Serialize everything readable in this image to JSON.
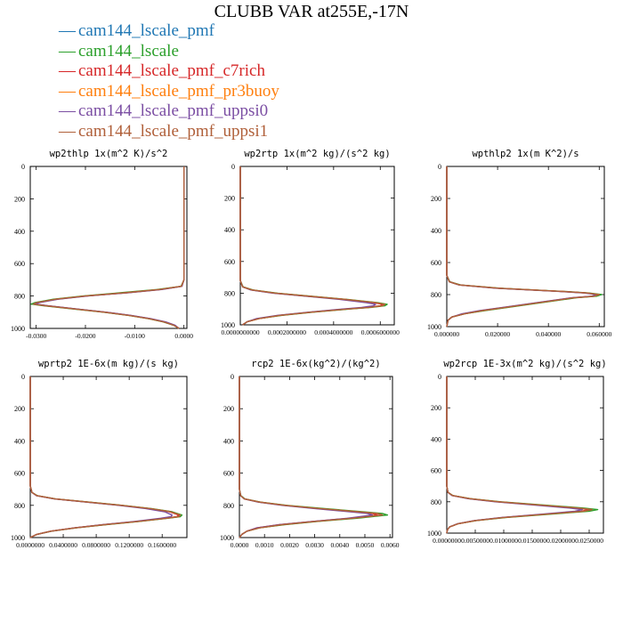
{
  "title": "CLUBB VAR at255E,-17N",
  "series": [
    {
      "name": "cam144_lscale_pmf",
      "color": "#1f77b4"
    },
    {
      "name": "cam144_lscale",
      "color": "#2ca02c"
    },
    {
      "name": "cam144_lscale_pmf_c7rich",
      "color": "#d62728"
    },
    {
      "name": "cam144_lscale_pmf_pr3buoy",
      "color": "#ff7f0e"
    },
    {
      "name": "cam144_lscale_pmf_uppsi0",
      "color": "#7b4ea3"
    },
    {
      "name": "cam144_lscale_pmf_uppsi1",
      "color": "#b0603a"
    }
  ],
  "legend_symbol": "—",
  "chart_data": [
    {
      "type": "line",
      "title": "wp2thlp   1x(m^2 K)/s^2",
      "ylim": [
        1000,
        0
      ],
      "yticks": [
        0,
        200,
        400,
        600,
        800,
        1000
      ],
      "xlim": [
        -0.0312,
        0.0006
      ],
      "xticks": [
        -0.03,
        -0.02,
        -0.01,
        0.0
      ],
      "xticklabels": [
        "-0.0300",
        "-0.0200",
        "-0.0100",
        "0.0000"
      ],
      "y": [
        0,
        700,
        740,
        760,
        780,
        800,
        820,
        840,
        850,
        860,
        880,
        900,
        920,
        940,
        960,
        980,
        1000
      ],
      "curves": [
        [
          0,
          0,
          -0.0005,
          -0.005,
          -0.012,
          -0.02,
          -0.026,
          -0.0298,
          -0.0305,
          -0.028,
          -0.022,
          -0.016,
          -0.011,
          -0.007,
          -0.004,
          -0.002,
          -0.001
        ],
        [
          0,
          0,
          -0.0006,
          -0.0055,
          -0.013,
          -0.0205,
          -0.0265,
          -0.0302,
          -0.031,
          -0.0285,
          -0.0225,
          -0.0163,
          -0.0112,
          -0.0072,
          -0.0042,
          -0.0021,
          -0.001
        ],
        [
          0,
          0,
          -0.0005,
          -0.0048,
          -0.0118,
          -0.0198,
          -0.0258,
          -0.0296,
          -0.0303,
          -0.0279,
          -0.0219,
          -0.0159,
          -0.0109,
          -0.0069,
          -0.0039,
          -0.0019,
          -0.001
        ],
        [
          0,
          0,
          -0.0005,
          -0.0049,
          -0.0119,
          -0.0199,
          -0.0259,
          -0.0297,
          -0.0304,
          -0.028,
          -0.022,
          -0.016,
          -0.011,
          -0.007,
          -0.004,
          -0.002,
          -0.001
        ],
        [
          0,
          0,
          -0.0004,
          -0.0045,
          -0.0115,
          -0.0195,
          -0.0255,
          -0.0293,
          -0.0301,
          -0.0277,
          -0.0217,
          -0.0157,
          -0.0107,
          -0.0067,
          -0.0037,
          -0.0018,
          -0.001
        ],
        [
          0,
          0,
          -0.0005,
          -0.005,
          -0.012,
          -0.02,
          -0.026,
          -0.0299,
          -0.0306,
          -0.0281,
          -0.0221,
          -0.0161,
          -0.0111,
          -0.0071,
          -0.0041,
          -0.0021,
          -0.001
        ]
      ]
    },
    {
      "type": "line",
      "title": "wp2rtp   1x(m^2 kg)/(s^2 kg)",
      "ylim": [
        1000,
        0
      ],
      "yticks": [
        0,
        200,
        400,
        600,
        800,
        1000
      ],
      "xlim": [
        0,
        0.00066
      ],
      "xticks": [
        0,
        0.0002,
        0.0004,
        0.0006
      ],
      "xticklabels": [
        "0.0000000000",
        "0.0002000000",
        "0.0004000000",
        "0.0006000000"
      ],
      "y": [
        0,
        720,
        760,
        780,
        800,
        820,
        840,
        860,
        870,
        880,
        890,
        900,
        920,
        940,
        960,
        980,
        1000
      ],
      "curves": [
        [
          0,
          0,
          1e-05,
          5e-05,
          0.00015,
          0.0003,
          0.00045,
          0.00058,
          0.00062,
          0.00061,
          0.00055,
          0.00046,
          0.0003,
          0.00017,
          8e-05,
          3e-05,
          1e-05
        ],
        [
          0,
          0,
          1.2e-05,
          5.5e-05,
          0.00016,
          0.00031,
          0.00046,
          0.00059,
          0.00063,
          0.00062,
          0.00056,
          0.00047,
          0.00031,
          0.00018,
          8e-05,
          3e-05,
          1e-05
        ],
        [
          0,
          0,
          1e-05,
          5e-05,
          0.00015,
          0.0003,
          0.00045,
          0.00057,
          0.00061,
          0.0006,
          0.00054,
          0.00045,
          0.0003,
          0.00017,
          8e-05,
          3e-05,
          1e-05
        ],
        [
          0,
          0,
          1e-05,
          5e-05,
          0.00015,
          0.0003,
          0.00045,
          0.00058,
          0.00062,
          0.00061,
          0.00055,
          0.00046,
          0.0003,
          0.00017,
          8e-05,
          3e-05,
          1e-05
        ],
        [
          0,
          0,
          1e-05,
          4.5e-05,
          0.00014,
          0.00029,
          0.00043,
          0.00054,
          0.00058,
          0.00057,
          0.00052,
          0.00044,
          0.00029,
          0.00016,
          7e-05,
          3e-05,
          1e-05
        ],
        [
          0,
          0,
          1e-05,
          5e-05,
          0.00015,
          0.0003,
          0.00045,
          0.00058,
          0.00062,
          0.00061,
          0.00055,
          0.00046,
          0.0003,
          0.00017,
          8e-05,
          3e-05,
          1e-05
        ]
      ]
    },
    {
      "type": "line",
      "title": "wpthlp2   1x(m K^2)/s",
      "ylim": [
        1000,
        0
      ],
      "yticks": [
        0,
        200,
        400,
        600,
        800,
        1000
      ],
      "xlim": [
        0,
        0.062
      ],
      "xticks": [
        0,
        0.02,
        0.04,
        0.06
      ],
      "xticklabels": [
        "0.000000",
        "0.020000",
        "0.040000",
        "0.060000"
      ],
      "y": [
        0,
        680,
        720,
        740,
        760,
        780,
        790,
        800,
        810,
        820,
        840,
        860,
        880,
        900,
        920,
        940,
        960,
        1000
      ],
      "curves": [
        [
          0,
          0,
          0.001,
          0.005,
          0.02,
          0.045,
          0.055,
          0.06,
          0.058,
          0.05,
          0.041,
          0.032,
          0.023,
          0.014,
          0.007,
          0.002,
          0.0005,
          0
        ],
        [
          0,
          0,
          0.0012,
          0.0055,
          0.021,
          0.046,
          0.056,
          0.061,
          0.059,
          0.051,
          0.042,
          0.033,
          0.024,
          0.015,
          0.007,
          0.002,
          0.0005,
          0
        ],
        [
          0,
          0,
          0.001,
          0.005,
          0.02,
          0.045,
          0.055,
          0.0595,
          0.0575,
          0.0495,
          0.0405,
          0.0315,
          0.0225,
          0.0135,
          0.0065,
          0.002,
          0.0005,
          0
        ],
        [
          0,
          0,
          0.001,
          0.005,
          0.02,
          0.045,
          0.055,
          0.06,
          0.058,
          0.05,
          0.041,
          0.032,
          0.023,
          0.014,
          0.007,
          0.002,
          0.0005,
          0
        ],
        [
          0,
          0,
          0.001,
          0.0048,
          0.019,
          0.044,
          0.054,
          0.059,
          0.057,
          0.049,
          0.04,
          0.031,
          0.022,
          0.013,
          0.006,
          0.002,
          0.0005,
          0
        ],
        [
          0,
          0,
          0.001,
          0.005,
          0.02,
          0.045,
          0.055,
          0.06,
          0.058,
          0.05,
          0.041,
          0.032,
          0.023,
          0.014,
          0.007,
          0.002,
          0.0005,
          0
        ]
      ]
    },
    {
      "type": "line",
      "title": "wprtp2   1E-6x(m kg)/(s kg)",
      "ylim": [
        1000,
        0
      ],
      "yticks": [
        0,
        200,
        400,
        600,
        800,
        1000
      ],
      "xlim": [
        0,
        0.19
      ],
      "xticks": [
        0,
        0.04,
        0.08,
        0.12,
        0.16
      ],
      "xticklabels": [
        "0.0000000",
        "0.0400000",
        "0.0800000",
        "0.1200000",
        "0.1600000"
      ],
      "y": [
        0,
        680,
        720,
        740,
        760,
        780,
        800,
        820,
        840,
        860,
        870,
        880,
        900,
        920,
        940,
        960,
        980,
        1000
      ],
      "curves": [
        [
          0,
          0,
          0.002,
          0.008,
          0.03,
          0.07,
          0.11,
          0.145,
          0.17,
          0.182,
          0.18,
          0.165,
          0.13,
          0.09,
          0.055,
          0.025,
          0.008,
          0
        ],
        [
          0,
          0,
          0.0022,
          0.0085,
          0.031,
          0.072,
          0.112,
          0.147,
          0.172,
          0.184,
          0.182,
          0.167,
          0.132,
          0.092,
          0.056,
          0.026,
          0.008,
          0
        ],
        [
          0,
          0,
          0.002,
          0.008,
          0.03,
          0.07,
          0.11,
          0.144,
          0.169,
          0.18,
          0.178,
          0.164,
          0.129,
          0.089,
          0.054,
          0.025,
          0.008,
          0
        ],
        [
          0,
          0,
          0.002,
          0.008,
          0.03,
          0.07,
          0.11,
          0.145,
          0.17,
          0.182,
          0.18,
          0.165,
          0.13,
          0.09,
          0.055,
          0.025,
          0.008,
          0
        ],
        [
          0,
          0,
          0.002,
          0.0075,
          0.029,
          0.068,
          0.107,
          0.14,
          0.163,
          0.172,
          0.171,
          0.158,
          0.126,
          0.088,
          0.054,
          0.025,
          0.008,
          0
        ],
        [
          0,
          0,
          0.002,
          0.008,
          0.03,
          0.07,
          0.11,
          0.145,
          0.17,
          0.182,
          0.18,
          0.165,
          0.13,
          0.09,
          0.055,
          0.025,
          0.008,
          0
        ]
      ]
    },
    {
      "type": "line",
      "title": "rcp2   1E-6x(kg^2)/(kg^2)",
      "ylim": [
        1000,
        0
      ],
      "yticks": [
        0,
        200,
        400,
        600,
        800,
        1000
      ],
      "xlim": [
        0,
        0.0061
      ],
      "xticks": [
        0,
        0.001,
        0.002,
        0.003,
        0.004,
        0.005,
        0.006
      ],
      "xticklabels": [
        "0.0000",
        "0.0010",
        "0.0020",
        "0.0030",
        "0.0040",
        "0.0050",
        "0.0060"
      ],
      "y": [
        0,
        700,
        740,
        760,
        780,
        800,
        820,
        840,
        850,
        860,
        880,
        900,
        920,
        940,
        960,
        980,
        1000
      ],
      "curves": [
        [
          0,
          0,
          5e-05,
          0.0002,
          0.0008,
          0.0018,
          0.0032,
          0.0047,
          0.0055,
          0.0057,
          0.0045,
          0.003,
          0.0017,
          0.0008,
          0.0003,
          0.0001,
          0
        ],
        [
          0,
          0,
          6e-05,
          0.00022,
          0.00085,
          0.0019,
          0.0034,
          0.0049,
          0.0057,
          0.0059,
          0.0047,
          0.0031,
          0.0018,
          0.0008,
          0.0003,
          0.0001,
          0
        ],
        [
          0,
          0,
          5e-05,
          0.0002,
          0.0008,
          0.0018,
          0.0031,
          0.0046,
          0.0053,
          0.0055,
          0.0044,
          0.0029,
          0.0016,
          0.0007,
          0.0003,
          0.0001,
          0
        ],
        [
          0,
          0,
          5e-05,
          0.0002,
          0.0008,
          0.0018,
          0.0032,
          0.0047,
          0.0055,
          0.0057,
          0.0045,
          0.003,
          0.0017,
          0.0008,
          0.0003,
          0.0001,
          0
        ],
        [
          0,
          0,
          5e-05,
          0.00019,
          0.00075,
          0.0017,
          0.003,
          0.0044,
          0.0051,
          0.0053,
          0.0043,
          0.0029,
          0.0016,
          0.0007,
          0.0003,
          0.0001,
          0
        ],
        [
          0,
          0,
          5e-05,
          0.0002,
          0.0008,
          0.0018,
          0.0032,
          0.0047,
          0.0055,
          0.0057,
          0.0045,
          0.003,
          0.0017,
          0.0008,
          0.0003,
          0.0001,
          0
        ]
      ]
    },
    {
      "type": "line",
      "title": "wp2rcp   1E-3x(m^2 kg)/(s^2 kg)",
      "ylim": [
        1000,
        0
      ],
      "yticks": [
        0,
        200,
        400,
        600,
        800,
        1000
      ],
      "xlim": [
        0,
        0.0275
      ],
      "xticks": [
        0,
        0.005,
        0.01,
        0.015,
        0.02,
        0.025
      ],
      "xticklabels": [
        "0.0000000",
        "0.0050000",
        "0.0100000",
        "0.0150000",
        "0.0200000",
        "0.0250000"
      ],
      "y": [
        0,
        700,
        740,
        760,
        780,
        800,
        820,
        840,
        850,
        860,
        880,
        900,
        920,
        940,
        960,
        980,
        1000
      ],
      "curves": [
        [
          0,
          0,
          0.0002,
          0.001,
          0.004,
          0.009,
          0.016,
          0.023,
          0.0255,
          0.024,
          0.017,
          0.01,
          0.005,
          0.002,
          0.0005,
          0.0001,
          0
        ],
        [
          0,
          0,
          0.00022,
          0.0011,
          0.0042,
          0.0095,
          0.0168,
          0.024,
          0.0265,
          0.025,
          0.0178,
          0.0105,
          0.0052,
          0.002,
          0.0005,
          0.0001,
          0
        ],
        [
          0,
          0,
          0.0002,
          0.001,
          0.004,
          0.009,
          0.0158,
          0.0226,
          0.025,
          0.0236,
          0.0168,
          0.0099,
          0.005,
          0.002,
          0.0005,
          0.0001,
          0
        ],
        [
          0,
          0,
          0.0002,
          0.001,
          0.004,
          0.009,
          0.016,
          0.023,
          0.0255,
          0.024,
          0.017,
          0.01,
          0.005,
          0.002,
          0.0005,
          0.0001,
          0
        ],
        [
          0,
          0,
          0.0002,
          0.0009,
          0.0037,
          0.0085,
          0.015,
          0.0215,
          0.0238,
          0.0225,
          0.0162,
          0.0096,
          0.0048,
          0.0019,
          0.0005,
          0.0001,
          0
        ],
        [
          0,
          0,
          0.0002,
          0.001,
          0.004,
          0.009,
          0.016,
          0.023,
          0.0255,
          0.024,
          0.017,
          0.01,
          0.005,
          0.002,
          0.0005,
          0.0001,
          0
        ]
      ]
    }
  ]
}
